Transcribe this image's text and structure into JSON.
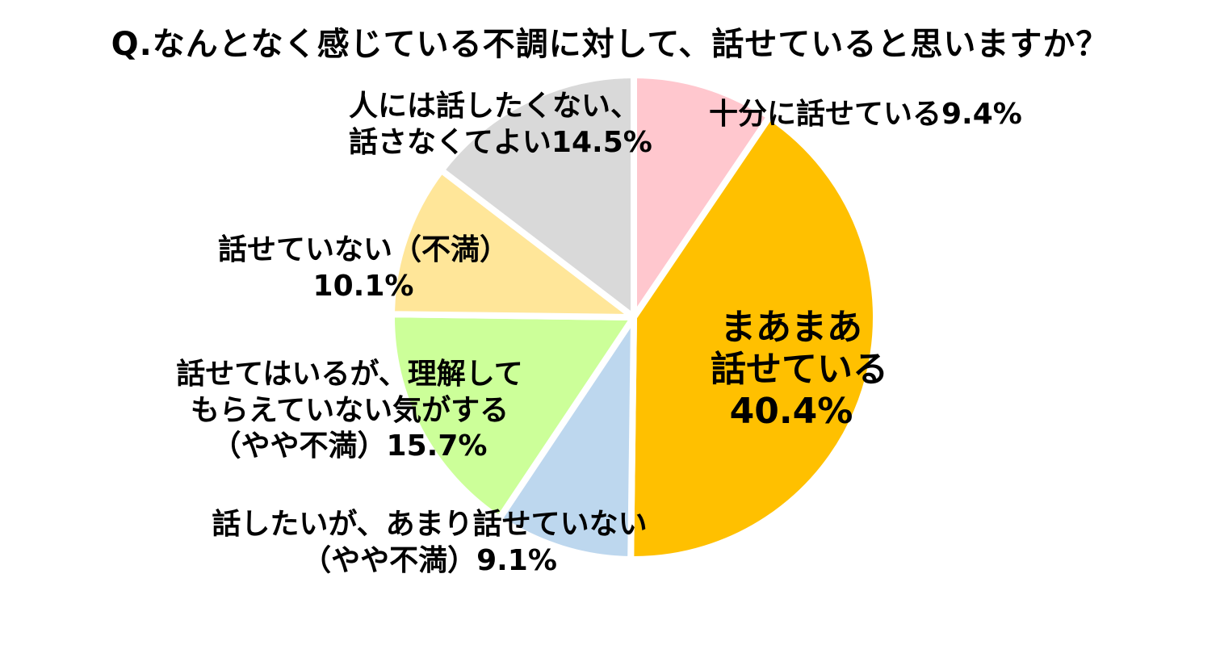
{
  "chart_data": {
    "type": "pie",
    "title": "Q.なんとなく感じている不調に対して、話せていると思いますか？",
    "start_angle": "top",
    "direction": "clockwise",
    "legend": "none",
    "slices": [
      {
        "name": "十分に話せている",
        "value": 9.4,
        "color": "#FFC7CE",
        "label_lines": [
          "十分に話せている9.4%"
        ]
      },
      {
        "name": "まあまあ話せている",
        "value": 40.4,
        "color": "#FFC000",
        "label_lines": [
          "まあまあ",
          "話せている",
          "40.4%"
        ]
      },
      {
        "name": "話したいが、あまり話せていない（やや不満）",
        "value": 9.1,
        "color": "#BDD7EE",
        "label_lines": [
          "話したいが、あまり話せていない",
          "（やや不満）9.1%"
        ]
      },
      {
        "name": "話せてはいるが、理解してもらえていない気がする（やや不満）",
        "value": 15.7,
        "color": "#CCFF99",
        "label_lines": [
          "話せてはいるが、理解して",
          "もらえていない気がする",
          "（やや不満）15.7%"
        ]
      },
      {
        "name": "話せていない（不満）",
        "value": 10.1,
        "color": "#FFE699",
        "label_lines": [
          "話せていない（不満）",
          "10.1%"
        ]
      },
      {
        "name": "人には話したくない、話さなくてよい",
        "value": 14.5,
        "color": "#D9D9D9",
        "label_lines": [
          "人には話したくない、",
          "話さなくてよい14.5%"
        ]
      }
    ]
  }
}
